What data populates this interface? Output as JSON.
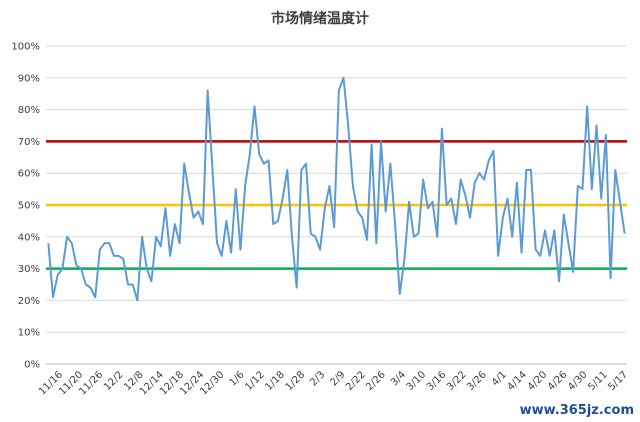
{
  "chart_data": {
    "type": "line",
    "title": "市场情绪温度计",
    "xlabel": "",
    "ylabel": "",
    "ylim": [
      0,
      100
    ],
    "yticks": [
      "0%",
      "10%",
      "20%",
      "30%",
      "40%",
      "50%",
      "60%",
      "70%",
      "80%",
      "90%",
      "100%"
    ],
    "xtick_labels": [
      "11/16",
      "11/20",
      "11/26",
      "12/2",
      "12/8",
      "12/14",
      "12/18",
      "12/24",
      "12/30",
      "1/6",
      "1/12",
      "1/18",
      "1/28",
      "2/3",
      "2/9",
      "2/22",
      "2/26",
      "3/4",
      "3/10",
      "3/16",
      "3/22",
      "3/26",
      "4/1",
      "4/14",
      "4/20",
      "4/26",
      "4/30",
      "5/11",
      "5/17"
    ],
    "grid": true,
    "reference_lines": [
      {
        "value": 70,
        "color": "#c00000"
      },
      {
        "value": 50,
        "color": "#ffc000"
      },
      {
        "value": 30,
        "color": "#00b050"
      }
    ],
    "series": [
      {
        "color": "#5b9bd5",
        "values": [
          38,
          21,
          28,
          30,
          40,
          38,
          31,
          30,
          25,
          24,
          21,
          36,
          38,
          38,
          34,
          34,
          33,
          25,
          25,
          20,
          40,
          30,
          26,
          40,
          37,
          49,
          34,
          44,
          38,
          63,
          54,
          46,
          48,
          44,
          86,
          62,
          38,
          34,
          45,
          35,
          55,
          36,
          56,
          66,
          81,
          66,
          63,
          64,
          44,
          45,
          52,
          61,
          40,
          24,
          61,
          63,
          41,
          40,
          36,
          49,
          56,
          43,
          86,
          90,
          75,
          56,
          48,
          46,
          39,
          69,
          38,
          70,
          48,
          63,
          44,
          22,
          33,
          51,
          40,
          41,
          58,
          49,
          51,
          40,
          74,
          50,
          52,
          44,
          58,
          53,
          46,
          57,
          60,
          58,
          64,
          67,
          34,
          46,
          52,
          40,
          57,
          35,
          61,
          61,
          36,
          34,
          42,
          34,
          42,
          26,
          47,
          38,
          29,
          56,
          55,
          81,
          55,
          75,
          52,
          72,
          27,
          61,
          51,
          41
        ]
      }
    ]
  },
  "watermark": "www.365jz.com"
}
